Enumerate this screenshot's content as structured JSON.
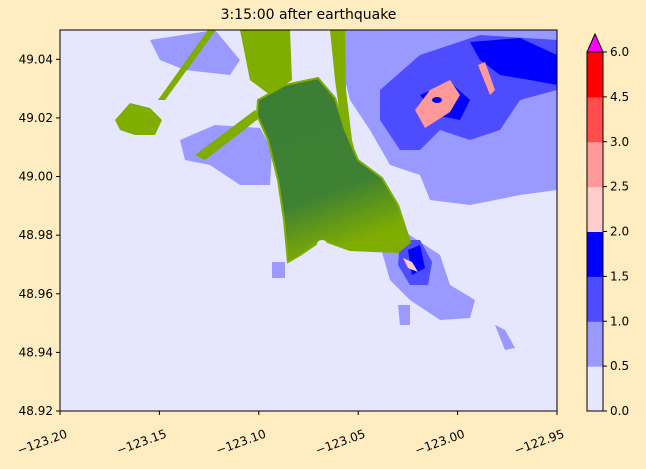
{
  "chart_data": {
    "type": "heatmap",
    "title": "3:15:00 after earthquake",
    "xlabel": "",
    "ylabel": "",
    "xlim": [
      -123.2,
      -122.95
    ],
    "ylim": [
      48.92,
      49.05
    ],
    "xticks": [
      "−123.20",
      "−123.15",
      "−123.10",
      "−123.05",
      "−123.00",
      "−122.95"
    ],
    "xtick_values": [
      -123.2,
      -123.15,
      -123.1,
      -123.05,
      -123.0,
      -122.95
    ],
    "yticks": [
      "48.92",
      "48.94",
      "48.96",
      "48.98",
      "49.00",
      "49.02",
      "49.04"
    ],
    "ytick_values": [
      48.92,
      48.94,
      48.96,
      48.98,
      49.0,
      49.02,
      49.04
    ],
    "colorbar": {
      "levels": [
        0.0,
        0.5,
        1.0,
        1.5,
        2.0,
        2.5,
        3.0,
        4.5,
        6.0
      ],
      "tick_labels": [
        "0.0",
        "0.5",
        "1.0",
        "1.5",
        "2.0",
        "2.5",
        "3.0",
        "4.5",
        "6.0"
      ],
      "colors": [
        "#e6e6ff",
        "#9999ff",
        "#4d4dff",
        "#0000ff",
        "#ffcccc",
        "#ff9999",
        "#ff4d4d",
        "#ff0000"
      ],
      "extend_max_color": "#ff00ff"
    },
    "land_colors": [
      "#3a7d35",
      "#7fad00"
    ],
    "background_color": "#ffedc1"
  }
}
